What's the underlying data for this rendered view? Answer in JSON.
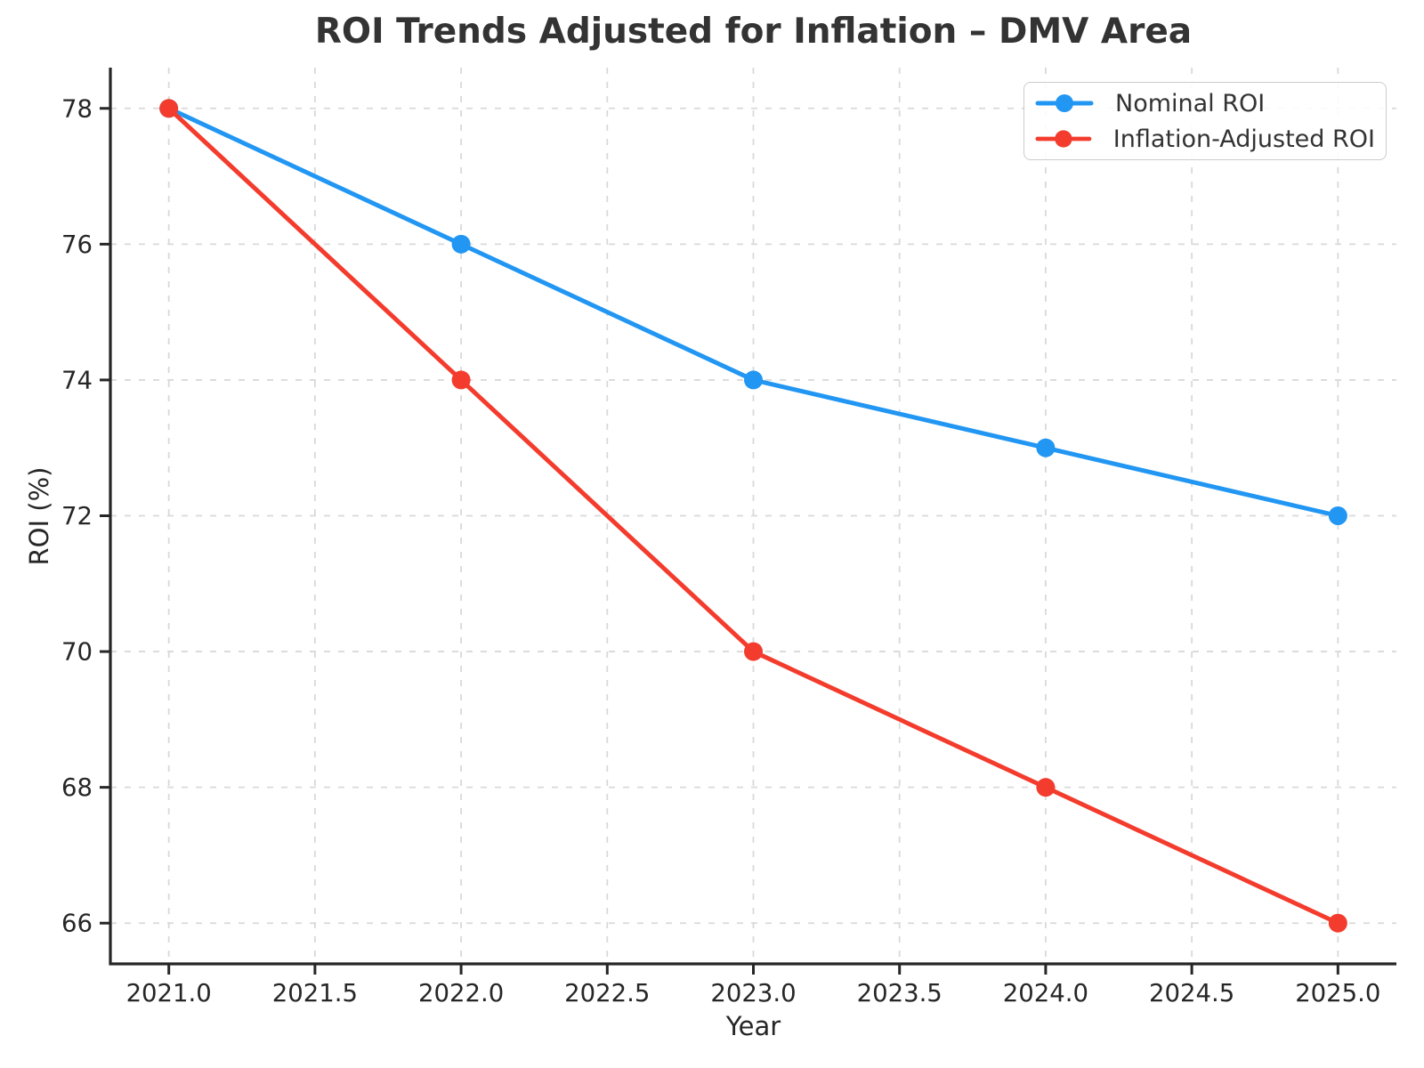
{
  "chart_data": {
    "type": "line",
    "title": "ROI Trends Adjusted for Inflation – DMV Area",
    "xlabel": "Year",
    "ylabel": "ROI (%)",
    "x": [
      2021,
      2022,
      2023,
      2024,
      2025
    ],
    "series": [
      {
        "name": "Nominal ROI",
        "color": "#2196f3",
        "values": [
          78,
          76,
          74,
          73,
          72
        ]
      },
      {
        "name": "Inflation-Adjusted ROI",
        "color": "#f33c2d",
        "values": [
          78,
          74,
          70,
          68,
          66
        ]
      }
    ],
    "xticks": {
      "values": [
        2021,
        2021.5,
        2022,
        2022.5,
        2023,
        2023.5,
        2024,
        2024.5,
        2025
      ],
      "labels": [
        "2021.0",
        "2021.5",
        "2022.0",
        "2022.5",
        "2023.0",
        "2023.5",
        "2024.0",
        "2024.5",
        "2025.0"
      ]
    },
    "yticks": {
      "values": [
        66,
        68,
        70,
        72,
        74,
        76,
        78
      ],
      "labels": [
        "66",
        "68",
        "70",
        "72",
        "74",
        "76",
        "78"
      ]
    },
    "xlim": [
      2020.8,
      2025.2
    ],
    "ylim": [
      65.4,
      78.6
    ],
    "grid": true,
    "legend_position": "top-right",
    "style": {
      "background": "#ffffff",
      "axis_color": "#262626",
      "grid_color": "#d9d9d9",
      "title_color": "#333333",
      "tick_label_color": "#262626"
    }
  }
}
